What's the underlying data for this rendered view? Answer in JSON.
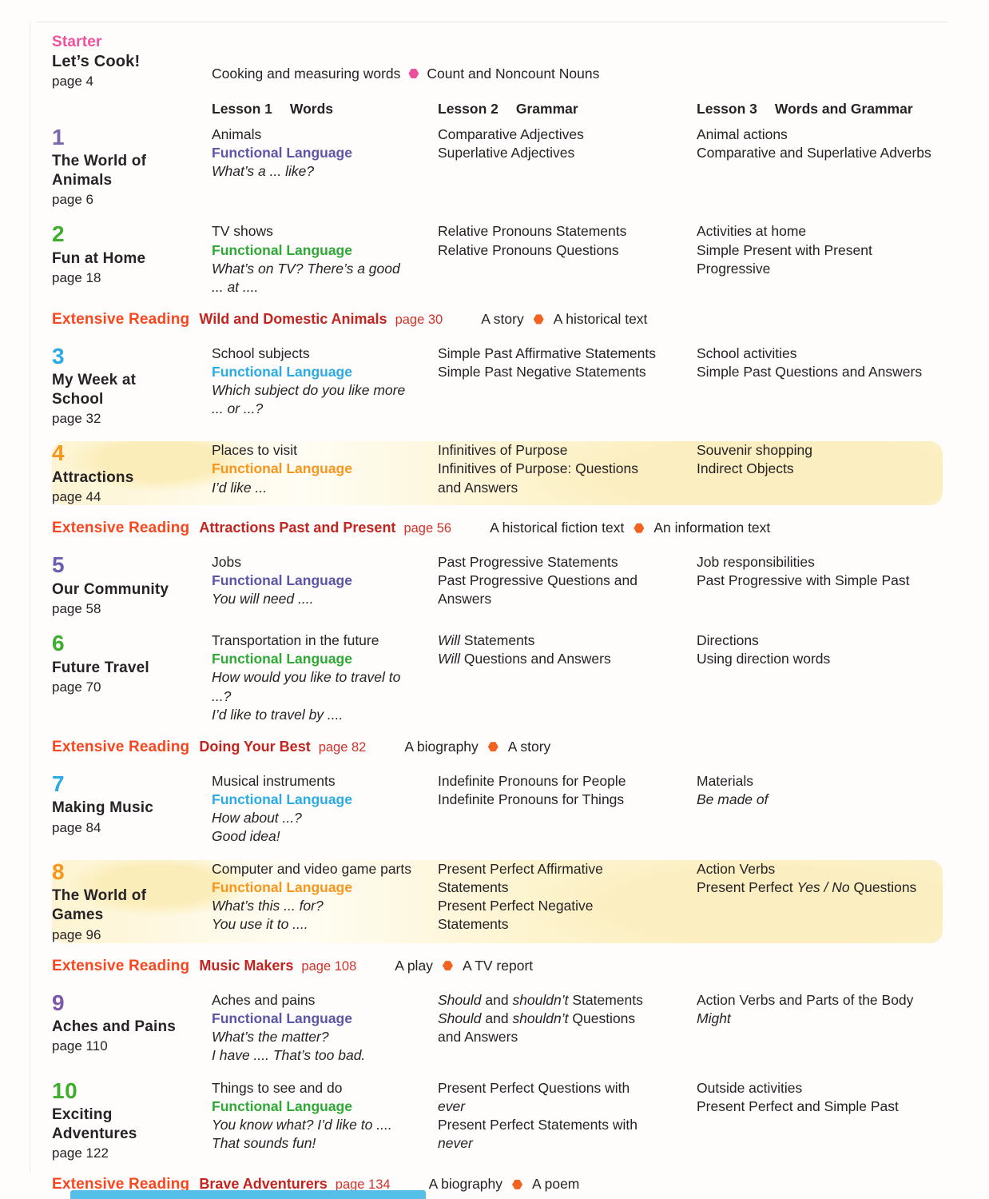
{
  "starter": {
    "label": "Starter",
    "title": "Let’s Cook!",
    "page": "page 4",
    "words": "Cooking and measuring words",
    "grammar": "Count and Noncount Nouns"
  },
  "headers": [
    {
      "lesson": "Lesson 1",
      "focus": "Words"
    },
    {
      "lesson": "Lesson 2",
      "focus": "Grammar"
    },
    {
      "lesson": "Lesson 3",
      "focus": "Words and Grammar"
    }
  ],
  "fl_label": "Functional Language",
  "units": [
    {
      "number": "1",
      "title": "The World of Animals",
      "page": "page 6",
      "number_color": "#7867ad",
      "fl_color": "#5f55a8",
      "highlight": false,
      "lesson1": {
        "words": [
          "Animals"
        ],
        "examples": [
          "What’s a ... like?"
        ]
      },
      "lesson2": [
        "Comparative Adjectives",
        "Superlative Adjectives"
      ],
      "lesson3": [
        "Animal actions",
        "Comparative and Superlative Adverbs"
      ]
    },
    {
      "number": "2",
      "title": "Fun at Home",
      "page": "page 18",
      "number_color": "#3dae2b",
      "fl_color": "#2fa836",
      "highlight": false,
      "lesson1": {
        "words": [
          "TV shows"
        ],
        "examples": [
          "What’s on TV? There’s a good ... at ...."
        ]
      },
      "lesson2": [
        "Relative Pronouns Statements",
        "Relative Pronouns Questions"
      ],
      "lesson3": [
        "Activities at home",
        "Simple Present with Present Progressive"
      ]
    },
    {
      "number": "3",
      "title": "My Week at School",
      "page": "page 32",
      "number_color": "#2aabe4",
      "fl_color": "#2aabe4",
      "highlight": false,
      "lesson1": {
        "words": [
          "School subjects"
        ],
        "examples": [
          "Which subject do you like more ... or ...?"
        ]
      },
      "lesson2": [
        "Simple Past Affirmative Statements",
        "Simple Past Negative Statements"
      ],
      "lesson3": [
        "School activities",
        "Simple Past Questions and Answers"
      ]
    },
    {
      "number": "4",
      "title": "Attractions",
      "page": "page 44",
      "number_color": "#f8951d",
      "fl_color": "#f8951d",
      "highlight": true,
      "lesson1": {
        "words": [
          "Places to visit"
        ],
        "examples": [
          "I’d like ..."
        ]
      },
      "lesson2": [
        "Infinitives of Purpose",
        "Infinitives of Purpose: Questions and Answers"
      ],
      "lesson3": [
        "Souvenir shopping",
        "Indirect Objects"
      ]
    },
    {
      "number": "5",
      "title": "Our Community",
      "page": "page 58",
      "number_color": "#6a5fb0",
      "fl_color": "#5a55a6",
      "highlight": false,
      "lesson1": {
        "words": [
          "Jobs"
        ],
        "examples": [
          "You will need ...."
        ]
      },
      "lesson2": [
        "Past Progressive Statements",
        "Past Progressive Questions and Answers"
      ],
      "lesson3": [
        "Job responsibilities",
        "Past Progressive with Simple Past"
      ]
    },
    {
      "number": "6",
      "title": "Future Travel",
      "page": "page 70",
      "number_color": "#3dae2b",
      "fl_color": "#2fa836",
      "highlight": false,
      "lesson1": {
        "words": [
          "Transportation in the future"
        ],
        "examples": [
          "How would you like to travel to ...?",
          "I’d like to travel by ...."
        ]
      },
      "lesson2": [
        "*Will* Statements",
        "*Will* Questions and Answers"
      ],
      "lesson3": [
        "Directions",
        "Using direction words"
      ]
    },
    {
      "number": "7",
      "title": "Making Music",
      "page": "page 84",
      "number_color": "#2aabe4",
      "fl_color": "#2aabe4",
      "highlight": false,
      "lesson1": {
        "words": [
          "Musical instruments"
        ],
        "examples": [
          "How about ...?",
          "Good idea!"
        ]
      },
      "lesson2": [
        "Indefinite Pronouns for People",
        "Indefinite Pronouns for Things"
      ],
      "lesson3": [
        "Materials",
        "*Be made of*"
      ]
    },
    {
      "number": "8",
      "title": "The World of Games",
      "page": "page 96",
      "number_color": "#f8951d",
      "fl_color": "#f8951d",
      "highlight": true,
      "lesson1": {
        "words": [
          "Computer and video game parts"
        ],
        "examples": [
          "What’s this ... for?",
          "You use it to ...."
        ]
      },
      "lesson2": [
        "Present Perfect Affirmative Statements",
        "Present Perfect Negative Statements"
      ],
      "lesson3": [
        "Action Verbs",
        "Present Perfect *Yes / No* Questions"
      ]
    },
    {
      "number": "9",
      "title": "Aches and Pains",
      "page": "page 110",
      "number_color": "#7d57a8",
      "fl_color": "#5a55a6",
      "highlight": false,
      "lesson1": {
        "words": [
          "Aches and pains"
        ],
        "examples": [
          "What’s the matter?",
          "I have .... That’s too bad."
        ]
      },
      "lesson2": [
        "*Should* and *shouldn’t* Statements",
        "*Should* and *shouldn’t* Questions and Answers"
      ],
      "lesson3": [
        "Action Verbs and Parts of the Body",
        "*Might*"
      ]
    },
    {
      "number": "10",
      "title": "Exciting Adventures",
      "page": "page 122",
      "number_color": "#3dae2b",
      "fl_color": "#2fa836",
      "highlight": false,
      "lesson1": {
        "words": [
          "Things to see and do"
        ],
        "examples": [
          "You know what? I’d like to ....",
          "That sounds fun!"
        ]
      },
      "lesson2": [
        "Present Perfect Questions with *ever*",
        "Present Perfect Statements with *never*"
      ],
      "lesson3": [
        "Outside activities",
        "Present Perfect and Simple Past"
      ]
    }
  ],
  "extensive_readings": [
    {
      "label": "Extensive Reading",
      "title": "Wild and Domestic Animals",
      "page": "page 30",
      "items": [
        "A story",
        "A historical text"
      ],
      "after_unit": 2
    },
    {
      "label": "Extensive Reading",
      "title": "Attractions Past and Present",
      "page": "page 56",
      "items": [
        "A historical fiction text",
        "An information text"
      ],
      "after_unit": 4
    },
    {
      "label": "Extensive Reading",
      "title": "Doing Your Best",
      "page": "page 82",
      "items": [
        "A biography",
        "A story"
      ],
      "after_unit": 6
    },
    {
      "label": "Extensive Reading",
      "title": "Music Makers",
      "page": "page 108",
      "items": [
        "A play",
        "A TV report"
      ],
      "after_unit": 8
    },
    {
      "label": "Extensive Reading",
      "title": "Brave Adventurers",
      "page": "page 134",
      "items": [
        "A biography",
        "A poem"
      ],
      "after_unit": 10
    }
  ],
  "colors": {
    "starter_label": "#f2509c",
    "starter_bullet": "#ec4f9b",
    "er_label": "#f9461f",
    "er_title": "#c22420",
    "er_page": "#d2322a",
    "er_bullet": "#f26322",
    "text": "#272225",
    "bottom_bar": "#55bfe9"
  }
}
